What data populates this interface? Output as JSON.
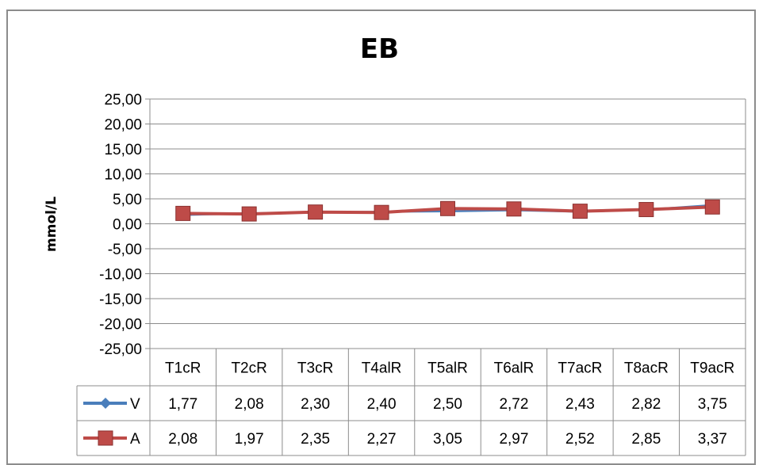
{
  "chart_data": {
    "type": "line",
    "title": "EB",
    "xlabel": "",
    "ylabel": "mmol/L",
    "ylim": [
      -25,
      25
    ],
    "y_ticks": [
      "25,00",
      "20,00",
      "15,00",
      "10,00",
      "5,00",
      "0,00",
      "-5,00",
      "-10,00",
      "-15,00",
      "-20,00",
      "-25,00"
    ],
    "categories": [
      "T1cR",
      "T2cR",
      "T3cR",
      "T4alR",
      "T5alR",
      "T6alR",
      "T7acR",
      "T8acR",
      "T9acR"
    ],
    "grid": true,
    "legend": "data-table",
    "series": [
      {
        "name": "V",
        "color": "#4a7ebb",
        "marker": "diamond",
        "values": [
          1.77,
          2.08,
          2.3,
          2.4,
          2.5,
          2.72,
          2.43,
          2.82,
          3.75
        ],
        "labels": [
          "1,77",
          "2,08",
          "2,30",
          "2,40",
          "2,50",
          "2,72",
          "2,43",
          "2,82",
          "3,75"
        ]
      },
      {
        "name": "A",
        "color": "#be4b48",
        "marker": "square",
        "values": [
          2.08,
          1.97,
          2.35,
          2.27,
          3.05,
          2.97,
          2.52,
          2.85,
          3.37
        ],
        "labels": [
          "2,08",
          "1,97",
          "2,35",
          "2,27",
          "3,05",
          "2,97",
          "2,52",
          "2,85",
          "3,37"
        ]
      }
    ]
  }
}
